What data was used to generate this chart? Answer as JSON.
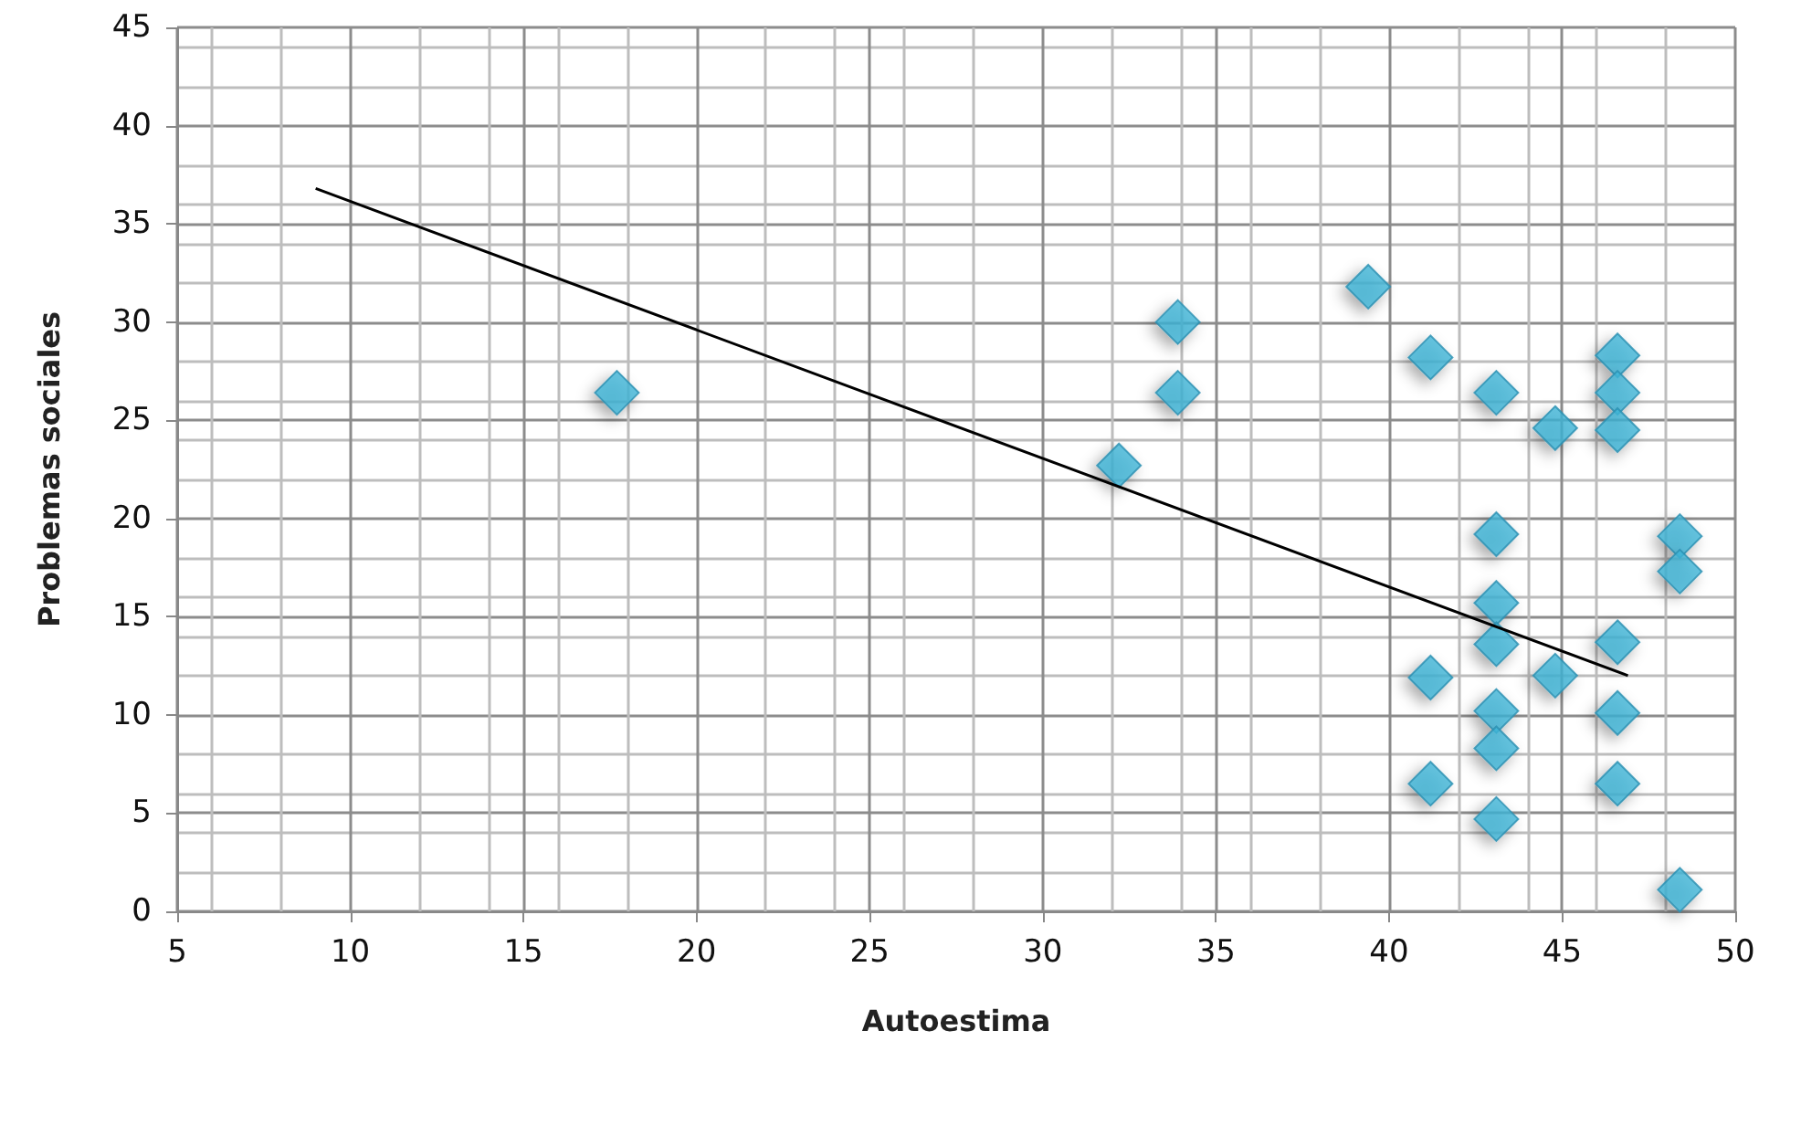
{
  "chart_data": {
    "type": "scatter",
    "xlabel": "Autoestima",
    "ylabel": "Problemas sociales",
    "xlim": [
      5,
      50
    ],
    "xticks": [
      5,
      10,
      15,
      20,
      25,
      30,
      35,
      40,
      45,
      50
    ],
    "ylim": [
      0,
      45
    ],
    "yticks": [
      0,
      5,
      10,
      15,
      20,
      25,
      30,
      35,
      40,
      45
    ],
    "grid": true,
    "marker": "diamond",
    "series": [
      {
        "color": "#3fb4d6",
        "x": [
          17.7,
          32.2,
          33.9,
          33.9,
          39.4,
          41.2,
          43.1,
          44.8,
          46.6,
          46.6,
          46.6,
          43.1,
          43.1,
          43.1,
          41.2,
          44.8,
          46.6,
          48.4,
          48.4,
          43.1,
          46.6,
          43.1,
          41.2,
          46.6,
          43.1,
          48.4
        ],
        "values": [
          26.4,
          22.7,
          30.0,
          26.4,
          31.8,
          28.2,
          26.4,
          24.6,
          28.3,
          26.4,
          24.5,
          19.2,
          15.7,
          13.6,
          11.9,
          12.0,
          13.7,
          19.1,
          17.3,
          10.2,
          10.1,
          8.3,
          6.5,
          6.5,
          4.7,
          1.1
        ]
      },
      {
        "type": "line",
        "color": "#000000",
        "marker": "none",
        "x": [
          9.0,
          46.9
        ],
        "values": [
          36.8,
          12.0
        ]
      }
    ]
  }
}
